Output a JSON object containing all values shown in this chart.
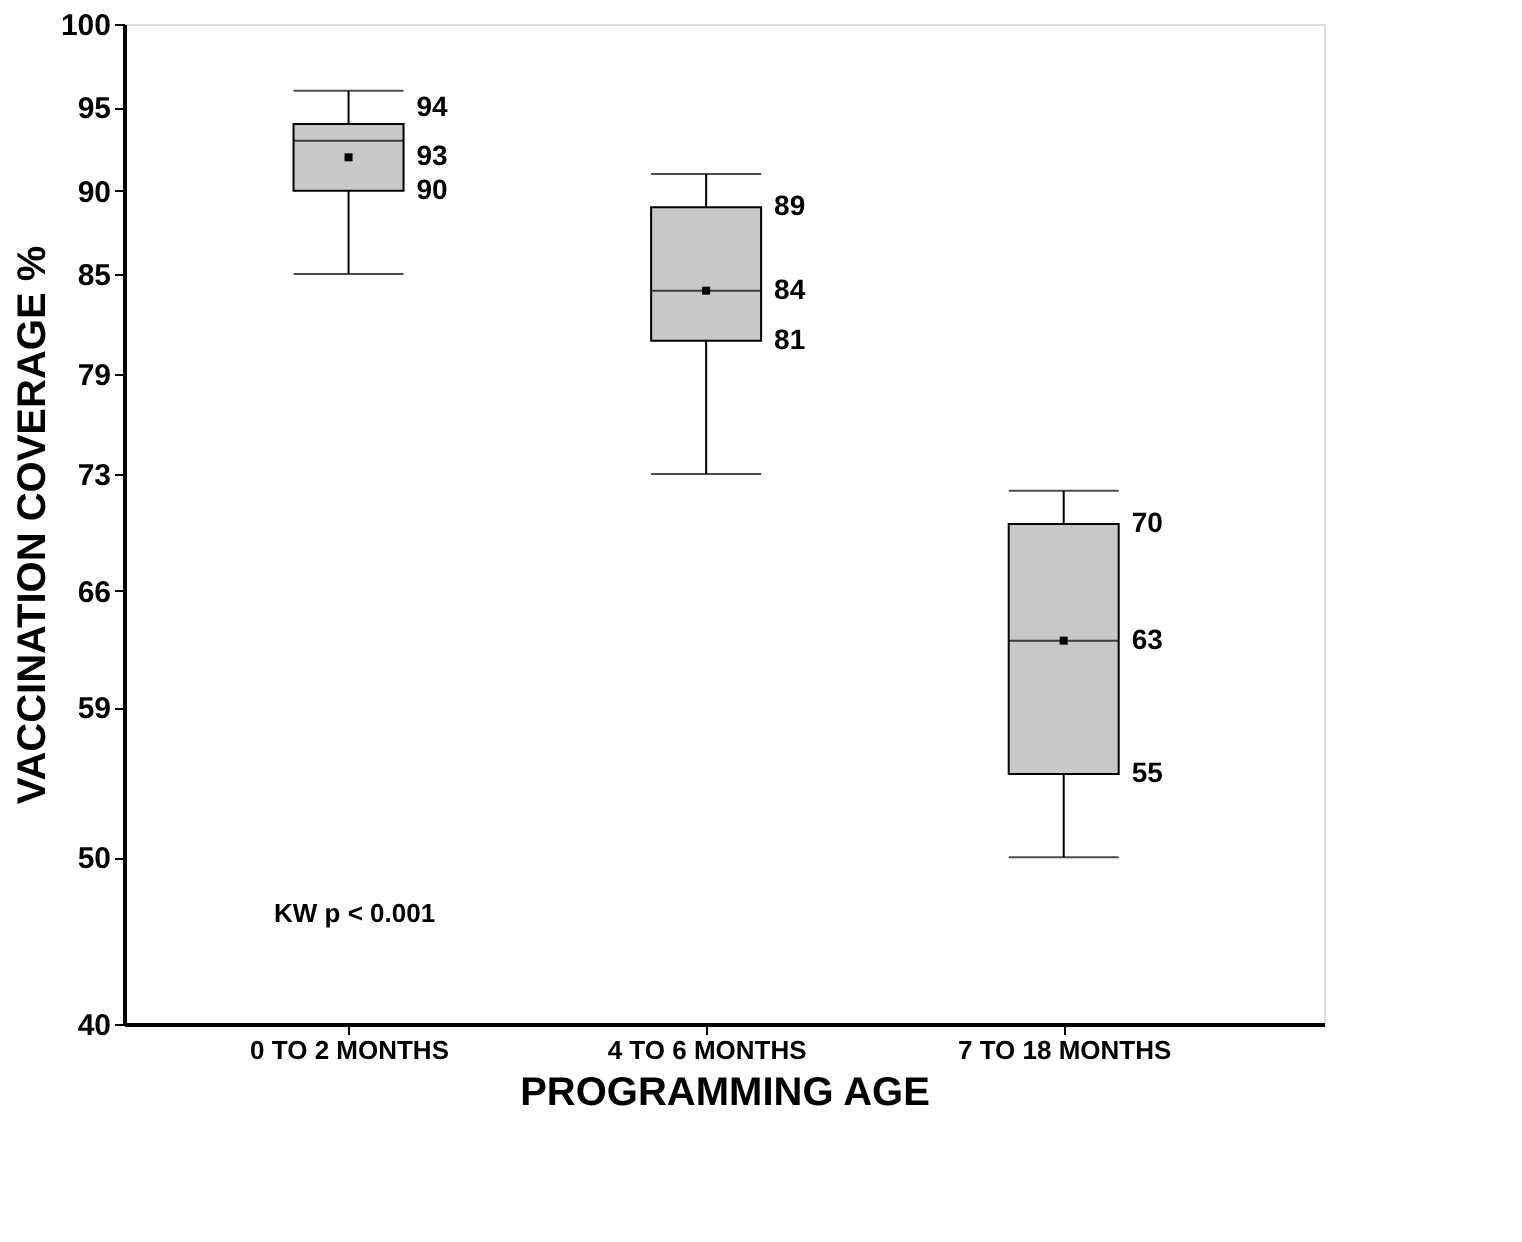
{
  "chart_data": {
    "type": "box",
    "xlabel": "PROGRAMMING AGE",
    "ylabel": "VACCINATION COVERAGE %",
    "categories": [
      "0 TO 2 MONTHS",
      "4 TO 6 MONTHS",
      "7 TO 18 MONTHS"
    ],
    "boxes": [
      {
        "low": 85,
        "q1": 90,
        "median": 93,
        "q3": 94,
        "high": 96,
        "mean": 92
      },
      {
        "low": 73,
        "q1": 81,
        "median": 84,
        "q3": 89,
        "high": 91,
        "mean": 84
      },
      {
        "low": 50,
        "q1": 55,
        "median": 63,
        "q3": 70,
        "high": 72,
        "mean": 63
      }
    ],
    "color": "#c8c8c8",
    "marker": "square",
    "ylim": [
      40,
      100
    ],
    "yticks": [
      40,
      50,
      59,
      66,
      73,
      79,
      85,
      90,
      95,
      100
    ],
    "grid": false,
    "annotations": [
      "KW  p < 0.001",
      {
        "text": "94",
        "x": "0 TO 2 MONTHS",
        "y": 94
      },
      {
        "text": "93",
        "x": "0 TO 2 MONTHS",
        "y": 93
      },
      {
        "text": "90",
        "x": "0 TO 2 MONTHS",
        "y": 90
      },
      {
        "text": "89",
        "x": "4 TO 6 MONTHS",
        "y": 89
      },
      {
        "text": "84",
        "x": "4 TO 6 MONTHS",
        "y": 84
      },
      {
        "text": "81",
        "x": "4 TO 6 MONTHS",
        "y": 81
      },
      {
        "text": "70",
        "x": "7 TO 18 MONTHS",
        "y": 70
      },
      {
        "text": "63",
        "x": "7 TO 18 MONTHS",
        "y": 63
      },
      {
        "text": "55",
        "x": "7 TO 18 MONTHS",
        "y": 55
      }
    ]
  }
}
